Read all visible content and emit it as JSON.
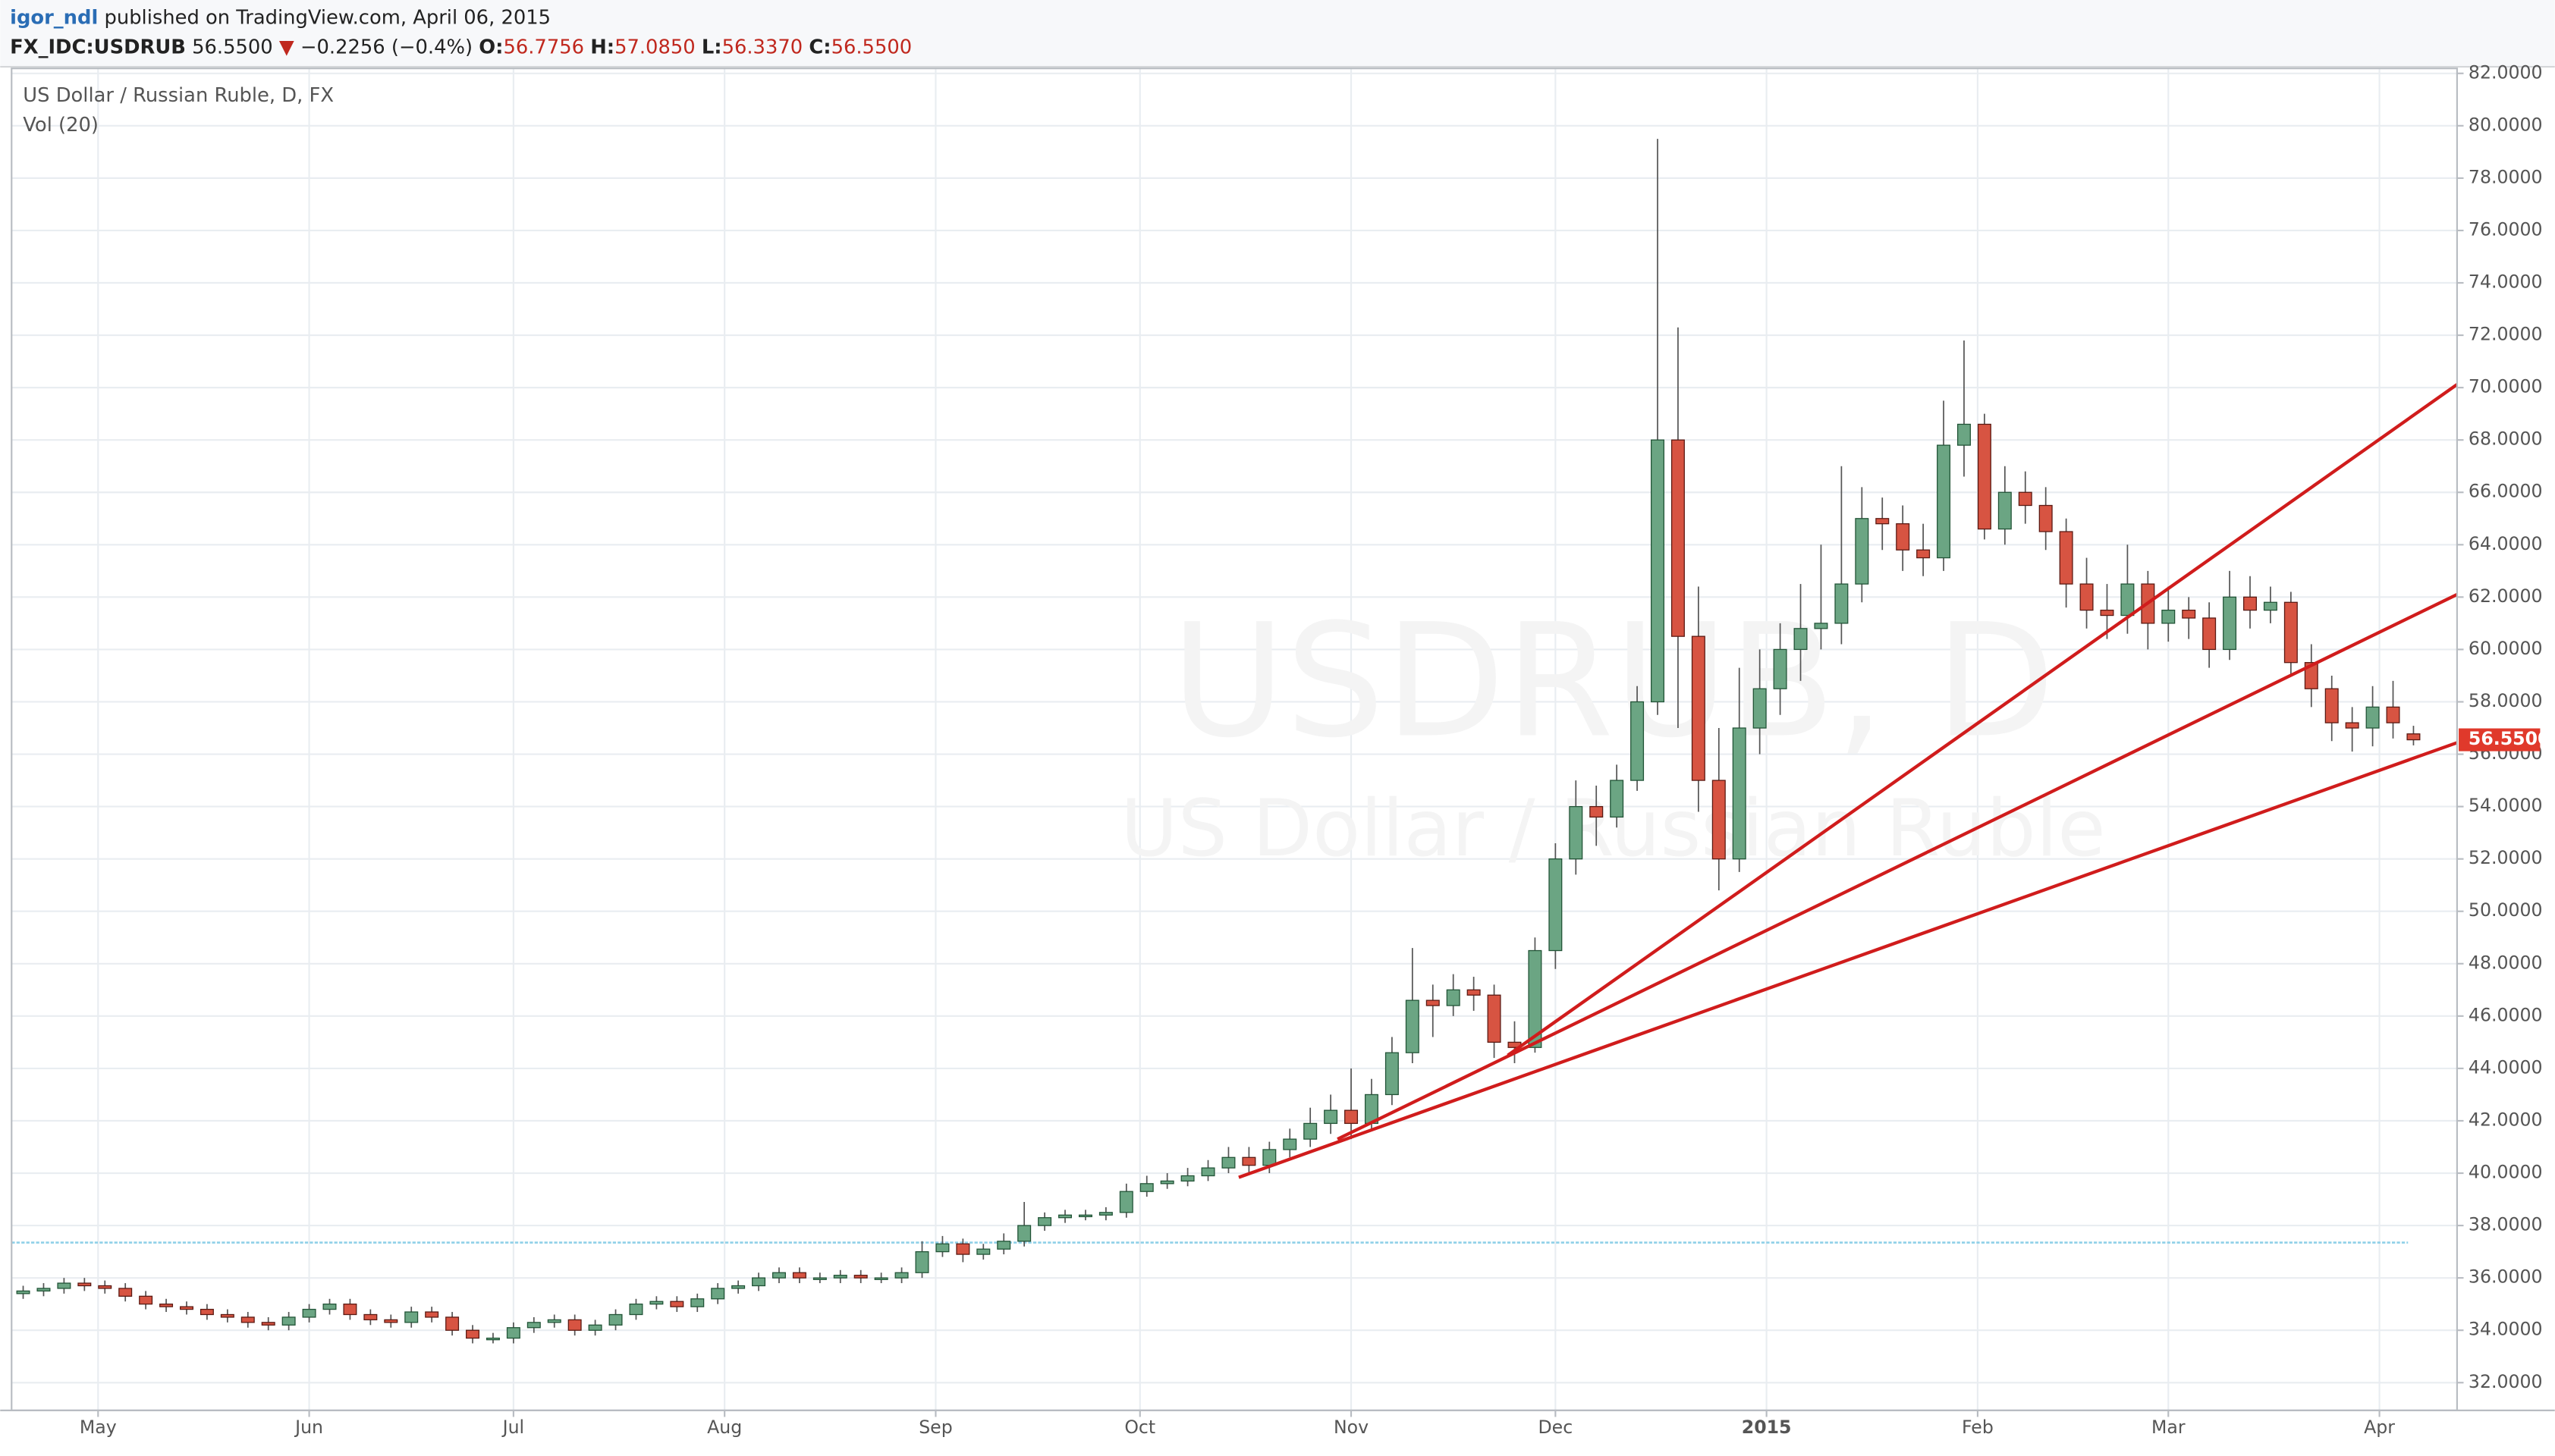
{
  "header": {
    "user": "igor_ndl",
    "published": "published on TradingView.com, April 06, 2015"
  },
  "chart_data": {
    "type": "candlestick",
    "symbol": "FX_IDC:USDRUB",
    "last": "56.5500",
    "direction": "▼",
    "change": "−0.2256 (−0.4%)",
    "ohlc": [
      {
        "label": "O:",
        "value": "56.7756"
      },
      {
        "label": "H:",
        "value": "57.0850"
      },
      {
        "label": "L:",
        "value": "56.3370"
      },
      {
        "label": "C:",
        "value": "56.5500"
      }
    ],
    "legend": "US Dollar / Russian Ruble, D, FX",
    "indicator": "Vol (20)",
    "watermark": [
      "USDRUB, D",
      "US Dollar / Russian Ruble"
    ],
    "price_label": "56.5500",
    "up_color": "#6ba583",
    "up_border": "#225437",
    "down_color": "#d75442",
    "down_border": "#5b1a13",
    "grid": true,
    "xlim": [
      -12.7,
      346.4
    ],
    "xticks": [
      {
        "value": 0,
        "label": "May"
      },
      {
        "value": 31,
        "label": "Jun"
      },
      {
        "value": 61,
        "label": "Jul"
      },
      {
        "value": 92,
        "label": "Aug"
      },
      {
        "value": 123,
        "label": "Sep"
      },
      {
        "value": 153,
        "label": "Oct"
      },
      {
        "value": 184,
        "label": "Nov"
      },
      {
        "value": 214,
        "label": "Dec"
      },
      {
        "value": 245,
        "label": "2015"
      },
      {
        "value": 276,
        "label": "Feb"
      },
      {
        "value": 304,
        "label": "Mar"
      },
      {
        "value": 335,
        "label": "Apr"
      }
    ],
    "ylim": [
      30.94,
      82.19
    ],
    "yticks": [
      {
        "value": 32,
        "label": "32.0000"
      },
      {
        "value": 34,
        "label": "34.0000"
      },
      {
        "value": 36,
        "label": "36.0000"
      },
      {
        "value": 38,
        "label": "38.0000"
      },
      {
        "value": 40,
        "label": "40.0000"
      },
      {
        "value": 42,
        "label": "42.0000"
      },
      {
        "value": 44,
        "label": "44.0000"
      },
      {
        "value": 46,
        "label": "46.0000"
      },
      {
        "value": 48,
        "label": "48.0000"
      },
      {
        "value": 50,
        "label": "50.0000"
      },
      {
        "value": 52,
        "label": "52.0000"
      },
      {
        "value": 54,
        "label": "54.0000"
      },
      {
        "value": 56,
        "label": "56.0000"
      },
      {
        "value": 58,
        "label": "58.0000"
      },
      {
        "value": 60,
        "label": "60.0000"
      },
      {
        "value": 62,
        "label": "62.0000"
      },
      {
        "value": 64,
        "label": "64.0000"
      },
      {
        "value": 66,
        "label": "66.0000"
      },
      {
        "value": 68,
        "label": "68.0000"
      },
      {
        "value": 70,
        "label": "70.0000"
      },
      {
        "value": 72,
        "label": "72.0000"
      },
      {
        "value": 74,
        "label": "74.0000"
      },
      {
        "value": 76,
        "label": "76.0000"
      },
      {
        "value": 78,
        "label": "78.0000"
      },
      {
        "value": 80,
        "label": "80.0000"
      },
      {
        "value": 82,
        "label": "82.0000"
      }
    ],
    "x": [
      -11,
      -8,
      -5,
      -2,
      1,
      4,
      7,
      10,
      13,
      16,
      19,
      22,
      25,
      28,
      31,
      34,
      37,
      40,
      43,
      46,
      49,
      52,
      55,
      58,
      61,
      64,
      67,
      70,
      73,
      76,
      79,
      82,
      85,
      88,
      91,
      94,
      97,
      100,
      103,
      106,
      109,
      112,
      115,
      118,
      121,
      124,
      127,
      130,
      133,
      136,
      139,
      142,
      145,
      148,
      151,
      154,
      157,
      160,
      163,
      166,
      169,
      172,
      175,
      178,
      181,
      184,
      187,
      190,
      193,
      196,
      199,
      202,
      205,
      208,
      211,
      214,
      217,
      220,
      223,
      226,
      229,
      232,
      235,
      238,
      241,
      244,
      247,
      250,
      253,
      256,
      259,
      262,
      265,
      268,
      271,
      274,
      277,
      280,
      283,
      286,
      289,
      292,
      295,
      298,
      301,
      304,
      307,
      310,
      313,
      316,
      319,
      322,
      325,
      328,
      331,
      334,
      337,
      340
    ],
    "open": [
      35.4,
      35.5,
      35.6,
      35.8,
      35.7,
      35.6,
      35.3,
      35.0,
      34.9,
      34.8,
      34.6,
      34.5,
      34.3,
      34.2,
      34.5,
      34.8,
      35.0,
      34.6,
      34.4,
      34.3,
      34.7,
      34.5,
      34.0,
      33.7,
      33.7,
      34.1,
      34.3,
      34.4,
      34.0,
      34.2,
      34.6,
      35.0,
      35.1,
      34.9,
      35.2,
      35.6,
      35.7,
      36.0,
      36.2,
      36.0,
      36.0,
      36.1,
      36.0,
      36.0,
      36.2,
      37.0,
      37.3,
      36.9,
      37.1,
      37.4,
      38.0,
      38.3,
      38.4,
      38.4,
      38.5,
      39.3,
      39.6,
      39.7,
      39.9,
      40.2,
      40.6,
      40.3,
      40.9,
      41.3,
      41.9,
      42.4,
      41.9,
      43.0,
      44.6,
      46.6,
      46.4,
      47.0,
      46.8,
      45.0,
      44.8,
      48.5,
      52.0,
      54.0,
      53.6,
      55.0,
      58.0,
      68.0,
      60.5,
      55.0,
      52.0,
      57.0,
      58.5,
      60.0,
      60.8,
      61.0,
      62.5,
      65.0,
      64.8,
      63.8,
      63.5,
      67.8,
      68.6,
      64.6,
      66.0,
      65.5,
      64.5,
      62.5,
      61.5,
      61.3,
      62.5,
      61.0,
      61.5,
      61.2,
      60.0,
      62.0,
      61.5,
      61.8,
      59.5,
      58.5,
      57.2,
      57.0,
      57.8,
      56.7756
    ],
    "high": [
      35.7,
      35.8,
      36.0,
      36.0,
      35.9,
      35.8,
      35.5,
      35.2,
      35.1,
      35.0,
      34.8,
      34.7,
      34.5,
      34.7,
      35.0,
      35.2,
      35.2,
      34.8,
      34.6,
      34.9,
      34.9,
      34.7,
      34.2,
      33.9,
      34.3,
      34.5,
      34.6,
      34.6,
      34.4,
      34.8,
      35.2,
      35.3,
      35.3,
      35.4,
      35.8,
      35.9,
      36.2,
      36.4,
      36.4,
      36.2,
      36.3,
      36.3,
      36.2,
      36.4,
      37.4,
      37.6,
      37.5,
      37.3,
      37.7,
      38.9,
      38.5,
      38.6,
      38.6,
      38.7,
      39.6,
      39.9,
      40.0,
      40.2,
      40.5,
      41.0,
      41.0,
      41.2,
      41.7,
      42.5,
      43.0,
      44.0,
      43.6,
      45.2,
      48.6,
      47.2,
      47.6,
      47.5,
      47.2,
      45.8,
      49.0,
      52.6,
      55.0,
      54.8,
      55.6,
      58.6,
      79.5,
      72.3,
      62.4,
      57.0,
      59.3,
      60.0,
      61.0,
      62.5,
      64.0,
      67.0,
      66.2,
      65.8,
      65.5,
      64.8,
      69.5,
      71.8,
      69.0,
      67.0,
      66.8,
      66.2,
      65.0,
      63.5,
      62.5,
      64.0,
      63.0,
      62.4,
      62.0,
      61.8,
      63.0,
      62.8,
      62.4,
      62.2,
      60.2,
      59.0,
      57.8,
      58.6,
      58.8,
      57.085
    ],
    "low": [
      35.2,
      35.3,
      35.4,
      35.5,
      35.4,
      35.1,
      34.8,
      34.7,
      34.6,
      34.4,
      34.3,
      34.1,
      34.0,
      34.0,
      34.3,
      34.6,
      34.4,
      34.2,
      34.1,
      34.1,
      34.3,
      33.8,
      33.5,
      33.5,
      33.5,
      33.9,
      34.1,
      33.8,
      33.8,
      34.0,
      34.4,
      34.8,
      34.7,
      34.7,
      35.0,
      35.4,
      35.5,
      35.8,
      35.8,
      35.8,
      35.8,
      35.8,
      35.8,
      35.8,
      36.0,
      36.8,
      36.6,
      36.7,
      36.9,
      37.2,
      37.8,
      38.1,
      38.2,
      38.2,
      38.3,
      39.1,
      39.4,
      39.5,
      39.7,
      40.0,
      40.0,
      40.0,
      40.6,
      41.0,
      41.5,
      41.3,
      41.6,
      42.6,
      44.2,
      45.2,
      46.0,
      46.2,
      44.4,
      44.2,
      44.6,
      47.8,
      51.4,
      52.5,
      53.2,
      54.6,
      57.5,
      57.0,
      53.8,
      50.8,
      51.5,
      56.0,
      57.5,
      58.8,
      60.0,
      60.2,
      61.8,
      63.8,
      63.0,
      62.8,
      63.0,
      66.6,
      64.2,
      64.0,
      64.8,
      63.8,
      61.6,
      60.8,
      60.4,
      60.6,
      60.0,
      60.3,
      60.4,
      59.3,
      59.6,
      60.8,
      61.0,
      59.0,
      57.8,
      56.5,
      56.1,
      56.3,
      56.6,
      56.337
    ],
    "close": [
      35.5,
      35.6,
      35.8,
      35.7,
      35.6,
      35.3,
      35.0,
      34.9,
      34.8,
      34.6,
      34.5,
      34.3,
      34.2,
      34.5,
      34.8,
      35.0,
      34.6,
      34.4,
      34.3,
      34.7,
      34.5,
      34.0,
      33.7,
      33.7,
      34.1,
      34.3,
      34.4,
      34.0,
      34.2,
      34.6,
      35.0,
      35.1,
      34.9,
      35.2,
      35.6,
      35.7,
      36.0,
      36.2,
      36.0,
      36.0,
      36.1,
      36.0,
      36.0,
      36.2,
      37.0,
      37.3,
      36.9,
      37.1,
      37.4,
      38.0,
      38.3,
      38.4,
      38.4,
      38.5,
      39.3,
      39.6,
      39.7,
      39.9,
      40.2,
      40.6,
      40.3,
      40.9,
      41.3,
      41.9,
      42.4,
      41.9,
      43.0,
      44.6,
      46.6,
      46.4,
      47.0,
      46.8,
      45.0,
      44.8,
      48.5,
      52.0,
      54.0,
      53.6,
      55.0,
      58.0,
      68.0,
      60.5,
      55.0,
      52.0,
      57.0,
      58.5,
      60.0,
      60.8,
      61.0,
      62.5,
      65.0,
      64.8,
      63.8,
      63.5,
      67.8,
      68.6,
      64.6,
      66.0,
      65.5,
      64.5,
      62.5,
      61.5,
      61.3,
      62.5,
      61.0,
      61.5,
      61.2,
      60.0,
      62.0,
      61.5,
      61.8,
      59.5,
      58.5,
      57.2,
      57.0,
      57.8,
      57.2,
      56.55
    ],
    "trend_lines": [
      {
        "color": "#d01c1c",
        "x": [
          167.5,
          346.4
        ],
        "y": [
          39.84,
          56.44
        ]
      },
      {
        "color": "#d01c1c",
        "x": [
          182,
          346.4
        ],
        "y": [
          41.3,
          62.1
        ]
      },
      {
        "color": "#d01c1c",
        "x": [
          207,
          346.4
        ],
        "y": [
          44.5,
          70.12
        ]
      }
    ],
    "horizontal_line": {
      "color": "#8fd0e8",
      "value": 37.35,
      "x": [
        -12.7,
        339.2
      ]
    }
  }
}
